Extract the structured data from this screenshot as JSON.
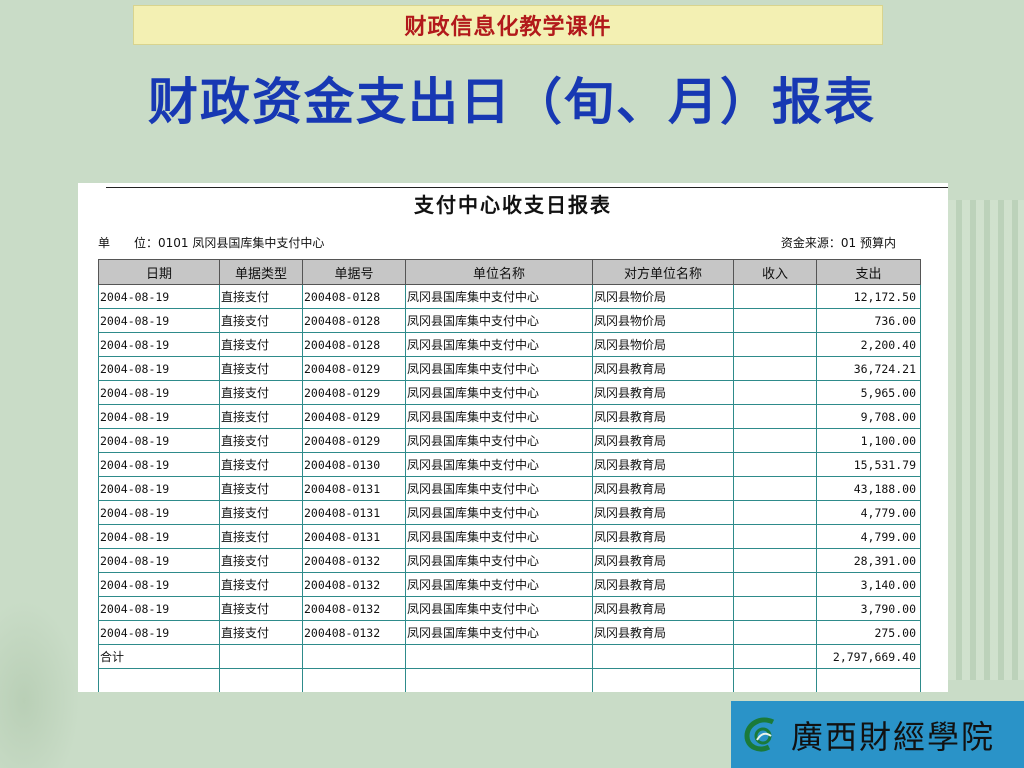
{
  "slide": {
    "banner": "财政信息化教学课件",
    "title": "财政资金支出日（旬、月）报表"
  },
  "report": {
    "title": "支付中心收支日报表",
    "unit_label": "单　　位：",
    "unit_value": "0101 凤冈县国库集中支付中心",
    "fund_source_label": "资金来源：",
    "fund_source_value": "01 预算内",
    "headers": [
      "日期",
      "单据类型",
      "单据号",
      "单位名称",
      "对方单位名称",
      "收入",
      "支出"
    ],
    "rows": [
      [
        "2004-08-19",
        "直接支付",
        "200408-0128",
        "凤冈县国库集中支付中心",
        "凤冈县物价局",
        "",
        "12,172.50"
      ],
      [
        "2004-08-19",
        "直接支付",
        "200408-0128",
        "凤冈县国库集中支付中心",
        "凤冈县物价局",
        "",
        "736.00"
      ],
      [
        "2004-08-19",
        "直接支付",
        "200408-0128",
        "凤冈县国库集中支付中心",
        "凤冈县物价局",
        "",
        "2,200.40"
      ],
      [
        "2004-08-19",
        "直接支付",
        "200408-0129",
        "凤冈县国库集中支付中心",
        "凤冈县教育局",
        "",
        "36,724.21"
      ],
      [
        "2004-08-19",
        "直接支付",
        "200408-0129",
        "凤冈县国库集中支付中心",
        "凤冈县教育局",
        "",
        "5,965.00"
      ],
      [
        "2004-08-19",
        "直接支付",
        "200408-0129",
        "凤冈县国库集中支付中心",
        "凤冈县教育局",
        "",
        "9,708.00"
      ],
      [
        "2004-08-19",
        "直接支付",
        "200408-0129",
        "凤冈县国库集中支付中心",
        "凤冈县教育局",
        "",
        "1,100.00"
      ],
      [
        "2004-08-19",
        "直接支付",
        "200408-0130",
        "凤冈县国库集中支付中心",
        "凤冈县教育局",
        "",
        "15,531.79"
      ],
      [
        "2004-08-19",
        "直接支付",
        "200408-0131",
        "凤冈县国库集中支付中心",
        "凤冈县教育局",
        "",
        "43,188.00"
      ],
      [
        "2004-08-19",
        "直接支付",
        "200408-0131",
        "凤冈县国库集中支付中心",
        "凤冈县教育局",
        "",
        "4,779.00"
      ],
      [
        "2004-08-19",
        "直接支付",
        "200408-0131",
        "凤冈县国库集中支付中心",
        "凤冈县教育局",
        "",
        "4,799.00"
      ],
      [
        "2004-08-19",
        "直接支付",
        "200408-0132",
        "凤冈县国库集中支付中心",
        "凤冈县教育局",
        "",
        "28,391.00"
      ],
      [
        "2004-08-19",
        "直接支付",
        "200408-0132",
        "凤冈县国库集中支付中心",
        "凤冈县教育局",
        "",
        "3,140.00"
      ],
      [
        "2004-08-19",
        "直接支付",
        "200408-0132",
        "凤冈县国库集中支付中心",
        "凤冈县教育局",
        "",
        "3,790.00"
      ],
      [
        "2004-08-19",
        "直接支付",
        "200408-0132",
        "凤冈县国库集中支付中心",
        "凤冈县教育局",
        "",
        "275.00"
      ]
    ],
    "total_label": "合计",
    "total_expense": "2,797,669.40"
  },
  "logo": {
    "name": "廣西財經學院",
    "icon": "college-logo-icon"
  },
  "colors": {
    "background": "#c9dcc7",
    "banner_bg": "#f3f0b3",
    "banner_text": "#b2191b",
    "title_text": "#1738b3",
    "logo_bg": "#2a93c8"
  }
}
